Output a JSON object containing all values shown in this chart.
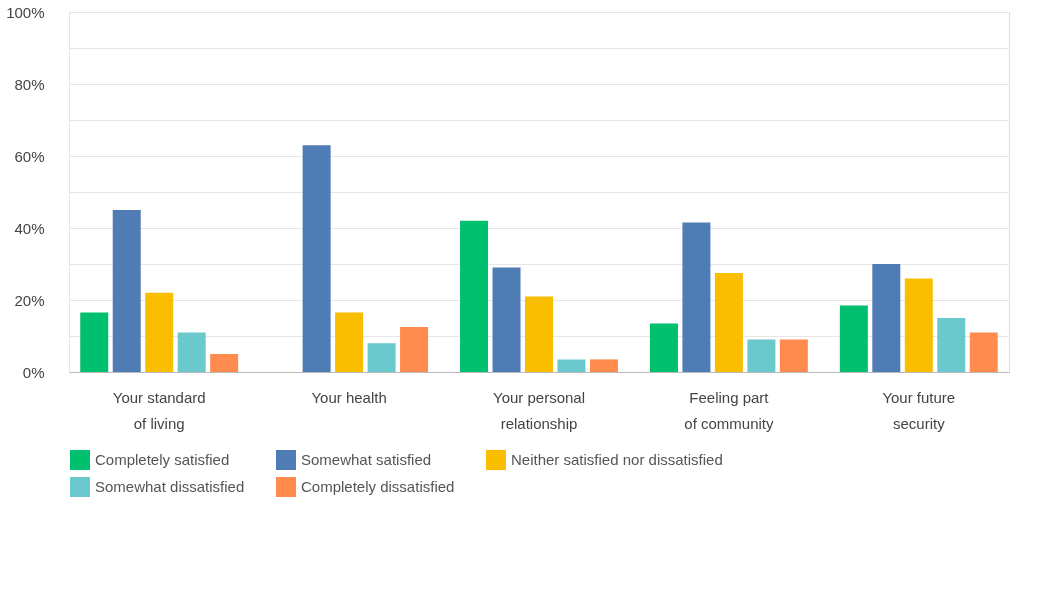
{
  "chart_data": {
    "type": "bar",
    "categories": [
      "Your standard of living",
      "Your health",
      "Your personal relationship",
      "Feeling part of community",
      "Your future security"
    ],
    "series": [
      {
        "name": "Completely satisfied",
        "color": "#00bf6f",
        "values": [
          16.5,
          null,
          42,
          13.5,
          18.5
        ]
      },
      {
        "name": "Somewhat satisfied",
        "color": "#507cb6",
        "values": [
          45,
          63,
          29,
          41.5,
          30
        ]
      },
      {
        "name": "Neither satisfied nor dissatisfied",
        "color": "#f9be00",
        "values": [
          22,
          16.5,
          21,
          27.5,
          26
        ]
      },
      {
        "name": "Somewhat dissatisfied",
        "color": "#6bc8cd",
        "values": [
          11,
          8,
          3.5,
          9,
          15
        ]
      },
      {
        "name": "Completely dissatisfied",
        "color": "#ff8b4f",
        "values": [
          5,
          12.5,
          3.5,
          9,
          11
        ]
      }
    ],
    "ylim": [
      0,
      100
    ],
    "yticks": [
      {
        "value": 0,
        "label": "0%"
      },
      {
        "value": 10,
        "label": null
      },
      {
        "value": 20,
        "label": "20%"
      },
      {
        "value": 30,
        "label": null
      },
      {
        "value": 40,
        "label": "40%"
      },
      {
        "value": 50,
        "label": null
      },
      {
        "value": 60,
        "label": "60%"
      },
      {
        "value": 70,
        "label": null
      },
      {
        "value": 80,
        "label": "80%"
      },
      {
        "value": 90,
        "label": null
      },
      {
        "value": 100,
        "label": "100%"
      }
    ],
    "grid": "y",
    "legend": "bottom"
  }
}
